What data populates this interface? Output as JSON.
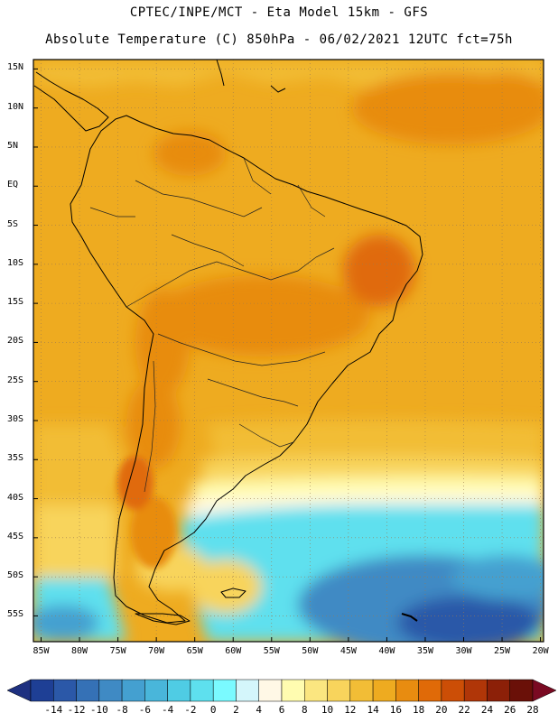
{
  "header": {
    "line1": "CPTEC/INPE/MCT -  Eta Model 15km - GFS",
    "line2": "Absolute Temperature (C) 850hPa - 06/02/2021 12UTC fct=75h"
  },
  "map": {
    "lat_labels": [
      "15N",
      "10N",
      "5N",
      "EQ",
      "5S",
      "10S",
      "15S",
      "20S",
      "25S",
      "30S",
      "35S",
      "40S",
      "45S",
      "50S",
      "55S"
    ],
    "lon_labels": [
      "85W",
      "80W",
      "75W",
      "70W",
      "65W",
      "60W",
      "55W",
      "50W",
      "45W",
      "40W",
      "35W",
      "30W",
      "25W",
      "20W"
    ],
    "lat_values": [
      15,
      10,
      5,
      0,
      -5,
      -10,
      -15,
      -20,
      -25,
      -30,
      -35,
      -40,
      -45,
      -50,
      -55
    ],
    "lon_values": [
      -85,
      -80,
      -75,
      -70,
      -65,
      -60,
      -55,
      -50,
      -45,
      -40,
      -35,
      -30,
      -25,
      -20
    ]
  },
  "colorbar": {
    "labels": [
      "-14",
      "-12",
      "-10",
      "-8",
      "-6",
      "-4",
      "-2",
      "0",
      "2",
      "4",
      "6",
      "8",
      "10",
      "12",
      "14",
      "16",
      "18",
      "20",
      "22",
      "24",
      "26",
      "28"
    ],
    "colors": [
      "#1e3f95",
      "#2b58a8",
      "#3571b6",
      "#3f8ac4",
      "#44a0d0",
      "#49b6da",
      "#4fcce4",
      "#5ee0ee",
      "#7afaff",
      "#d4f6fb",
      "#fff8e6",
      "#fffcb0",
      "#fbe680",
      "#f8d45c",
      "#f2bd36",
      "#eeab20",
      "#e88c10",
      "#e06a08",
      "#cc4e06",
      "#b03608",
      "#8c2008",
      "#6a1008"
    ],
    "under_color": "#1e3080",
    "over_color": "#7a0a22"
  },
  "colors": {
    "base_warm": "#eeab20",
    "hot": "#e06a08",
    "very_hot": "#cc4e06",
    "medium": "#f2bd36",
    "cool_yellow": "#f8d45c",
    "pale": "#fff8e6",
    "cyan": "#49dff0",
    "ocean_blue": "#3f8ac4",
    "deep_blue": "#2b58a8"
  }
}
